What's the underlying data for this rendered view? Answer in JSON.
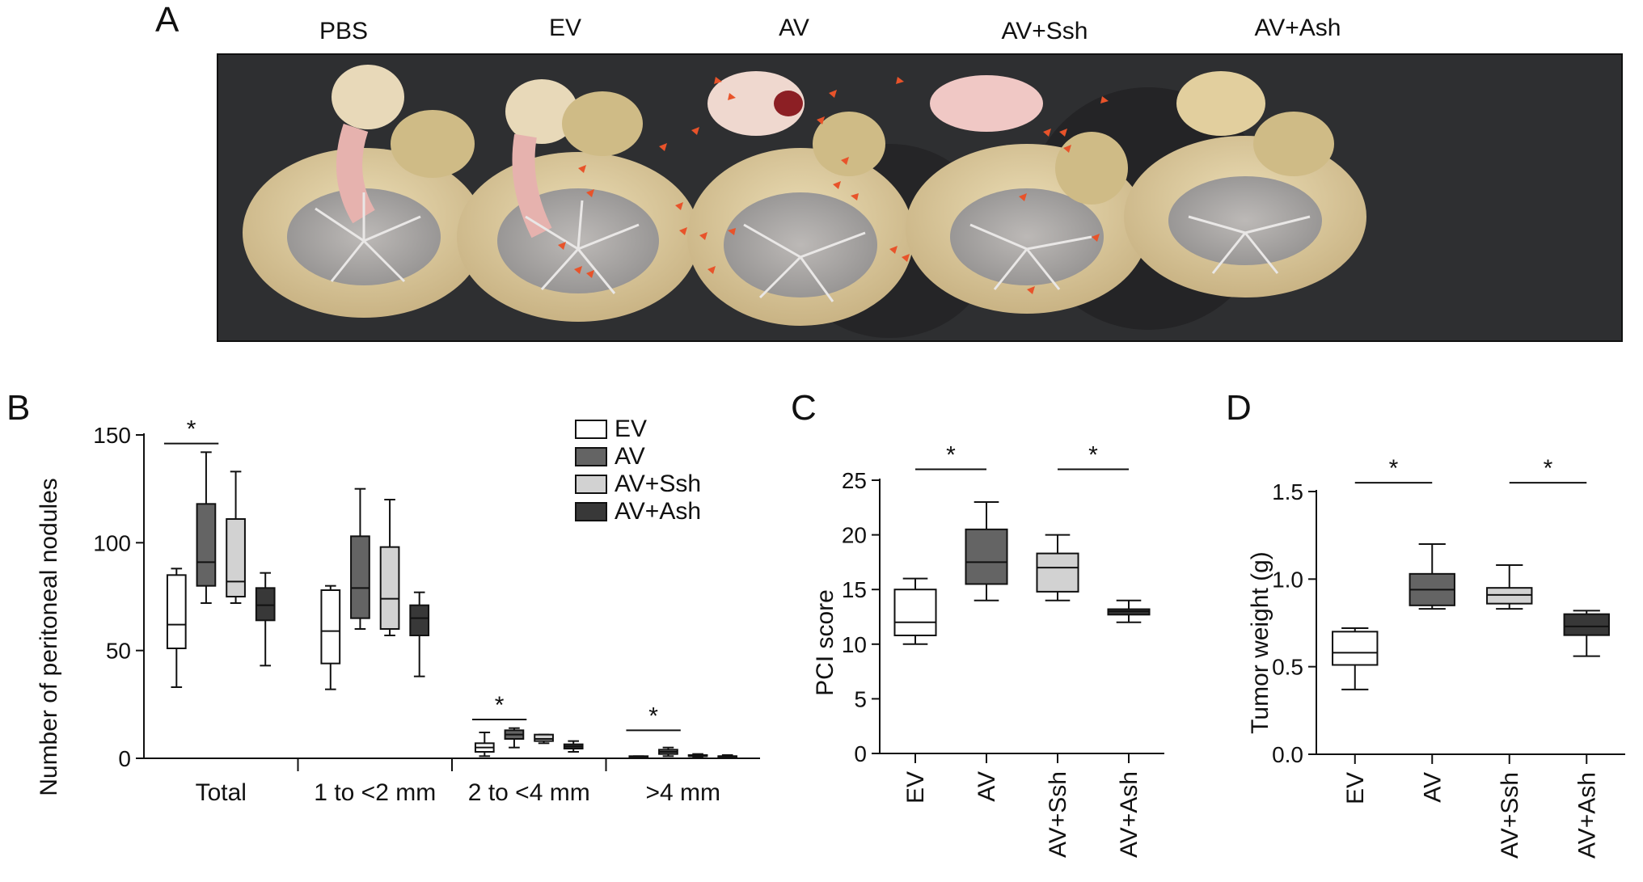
{
  "panels": {
    "A": {
      "letter": "A",
      "groups": [
        "PBS",
        "EV",
        "AV",
        "AV+Ssh",
        "AV+Ash"
      ]
    },
    "B": {
      "letter": "B"
    },
    "C": {
      "letter": "C"
    },
    "D": {
      "letter": "D"
    }
  },
  "colors": {
    "EV": "#ffffff",
    "AV": "#646464",
    "AV+Ssh": "#d2d2d2",
    "AV+Ash": "#383838",
    "arrowheads": "#e8532a",
    "photo_bg": "#2e2f31",
    "tissue": "#d9c89b",
    "mesentery": "#e9b9b0"
  },
  "chart_data": [
    {
      "type": "box",
      "panel": "B",
      "ylabel": "Number of peritoneal nodules",
      "ylim": [
        0,
        150
      ],
      "yticks": [
        0,
        50,
        100,
        150
      ],
      "categories": [
        "Total",
        "1 to <2 mm",
        "2 to <4 mm",
        ">4 mm"
      ],
      "legend": {
        "position": "top-right",
        "entries": [
          "EV",
          "AV",
          "AV+Ssh",
          "AV+Ash"
        ]
      },
      "series": [
        {
          "name": "EV",
          "boxes": [
            {
              "min": 33,
              "q1": 51,
              "median": 62,
              "q3": 85,
              "max": 88
            },
            {
              "min": 32,
              "q1": 44,
              "median": 59,
              "q3": 78,
              "max": 80
            },
            {
              "min": 1,
              "q1": 3,
              "median": 5,
              "q3": 7,
              "max": 12
            },
            {
              "min": 0,
              "q1": 0,
              "median": 0.5,
              "q3": 1,
              "max": 1
            }
          ]
        },
        {
          "name": "AV",
          "boxes": [
            {
              "min": 72,
              "q1": 80,
              "median": 91,
              "q3": 118,
              "max": 142
            },
            {
              "min": 60,
              "q1": 65,
              "median": 79,
              "q3": 103,
              "max": 125
            },
            {
              "min": 5,
              "q1": 9,
              "median": 11,
              "q3": 13,
              "max": 14
            },
            {
              "min": 1,
              "q1": 2,
              "median": 3,
              "q3": 4,
              "max": 5
            }
          ]
        },
        {
          "name": "AV+Ssh",
          "boxes": [
            {
              "min": 72,
              "q1": 75,
              "median": 82,
              "q3": 111,
              "max": 133
            },
            {
              "min": 57,
              "q1": 60,
              "median": 74,
              "q3": 98,
              "max": 120
            },
            {
              "min": 7,
              "q1": 8,
              "median": 9,
              "q3": 11,
              "max": 11
            },
            {
              "min": 0.5,
              "q1": 1,
              "median": 1,
              "q3": 1.5,
              "max": 2
            }
          ]
        },
        {
          "name": "AV+Ash",
          "boxes": [
            {
              "min": 43,
              "q1": 64,
              "median": 71,
              "q3": 79,
              "max": 86
            },
            {
              "min": 38,
              "q1": 57,
              "median": 65,
              "q3": 71,
              "max": 77
            },
            {
              "min": 3,
              "q1": 4.5,
              "median": 5.5,
              "q3": 6.5,
              "max": 8
            },
            {
              "min": 0,
              "q1": 0.5,
              "median": 1,
              "q3": 1,
              "max": 1.5
            }
          ]
        }
      ],
      "significance": [
        {
          "category": "Total",
          "between": [
            "EV",
            "AV"
          ],
          "label": "*",
          "y": 146
        },
        {
          "category": "2 to <4 mm",
          "between": [
            "EV",
            "AV"
          ],
          "label": "*",
          "y": 18
        },
        {
          "category": ">4 mm",
          "between": [
            "EV",
            "AV"
          ],
          "label": "*",
          "y": 13
        }
      ]
    },
    {
      "type": "box",
      "panel": "C",
      "ylabel": "PCI score",
      "ylim": [
        0,
        25
      ],
      "yticks": [
        0,
        5,
        10,
        15,
        20,
        25
      ],
      "categories": [
        "EV",
        "AV",
        "AV+Ssh",
        "AV+Ash"
      ],
      "boxes": [
        {
          "name": "EV",
          "min": 10,
          "q1": 10.8,
          "median": 12,
          "q3": 15,
          "max": 16
        },
        {
          "name": "AV",
          "min": 14,
          "q1": 15.5,
          "median": 17.5,
          "q3": 20.5,
          "max": 23
        },
        {
          "name": "AV+Ssh",
          "min": 14,
          "q1": 14.8,
          "median": 17,
          "q3": 18.3,
          "max": 20
        },
        {
          "name": "AV+Ash",
          "min": 12,
          "q1": 12.7,
          "median": 13,
          "q3": 13.2,
          "max": 14
        }
      ],
      "significance": [
        {
          "between": [
            "EV",
            "AV"
          ],
          "label": "*",
          "y": 26
        },
        {
          "between": [
            "AV+Ssh",
            "AV+Ash"
          ],
          "label": "*",
          "y": 26
        }
      ]
    },
    {
      "type": "box",
      "panel": "D",
      "ylabel": "Tumor weight (g)",
      "ylim": [
        0,
        1.5
      ],
      "yticks": [
        "0.0",
        "0.5",
        "1.0",
        "1.5"
      ],
      "categories": [
        "EV",
        "AV",
        "AV+Ssh",
        "AV+Ash"
      ],
      "boxes": [
        {
          "name": "EV",
          "min": 0.37,
          "q1": 0.51,
          "median": 0.58,
          "q3": 0.7,
          "max": 0.72
        },
        {
          "name": "AV",
          "min": 0.83,
          "q1": 0.85,
          "median": 0.94,
          "q3": 1.03,
          "max": 1.2
        },
        {
          "name": "AV+Ssh",
          "min": 0.83,
          "q1": 0.86,
          "median": 0.91,
          "q3": 0.95,
          "max": 1.08
        },
        {
          "name": "AV+Ash",
          "min": 0.56,
          "q1": 0.68,
          "median": 0.73,
          "q3": 0.8,
          "max": 0.82
        }
      ],
      "significance": [
        {
          "between": [
            "EV",
            "AV"
          ],
          "label": "*",
          "y": 1.55
        },
        {
          "between": [
            "AV+Ssh",
            "AV+Ash"
          ],
          "label": "*",
          "y": 1.55
        }
      ]
    }
  ]
}
